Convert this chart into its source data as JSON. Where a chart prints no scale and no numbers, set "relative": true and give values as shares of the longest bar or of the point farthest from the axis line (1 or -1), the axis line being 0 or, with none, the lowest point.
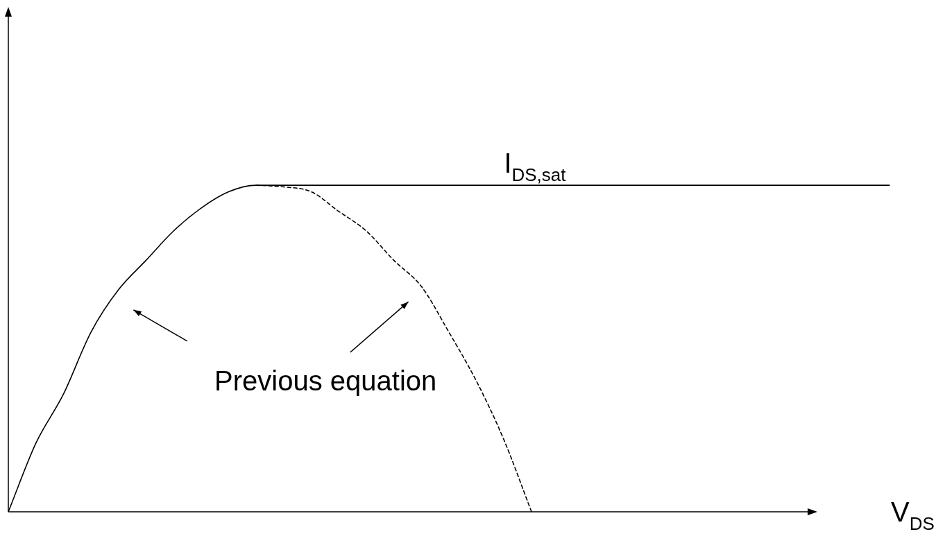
{
  "chart_data": {
    "type": "line",
    "relative": true,
    "xlabel": "V$_{DS}$",
    "categories": [
      null,
      null,
      null,
      null,
      null,
      null,
      null,
      null,
      null,
      null,
      null,
      null,
      null,
      null,
      null,
      null,
      null,
      null,
      null,
      null,
      null,
      null,
      null,
      null,
      null,
      null,
      null,
      null,
      null,
      null,
      null,
      null,
      null
    ],
    "series": [
      {
        "name": "I$_{DS,sat}$",
        "color": "#000000",
        "line_style": "solid",
        "values": [
          0,
          0.21,
          0.36,
          0.55,
          0.68,
          0.77,
          0.86,
          0.93,
          0.98,
          1,
          1,
          1,
          1,
          1,
          1,
          1,
          1,
          1,
          1,
          1,
          1,
          1,
          1,
          1,
          1,
          1,
          1,
          1,
          1,
          1,
          1,
          1,
          1
        ]
      },
      {
        "color": "#000000",
        "line_style": "dashed",
        "values": [
          null,
          null,
          null,
          null,
          null,
          null,
          null,
          null,
          null,
          1,
          0.995,
          0.98,
          0.92,
          0.86,
          0.77,
          0.69,
          0.55,
          0.4,
          0.22,
          0,
          null,
          null,
          null,
          null,
          null,
          null,
          null,
          null,
          null,
          null,
          null,
          null,
          null
        ]
      }
    ],
    "annotations": [
      "Previous equation"
    ],
    "grid": false,
    "legend": false,
    "marker": "none"
  }
}
